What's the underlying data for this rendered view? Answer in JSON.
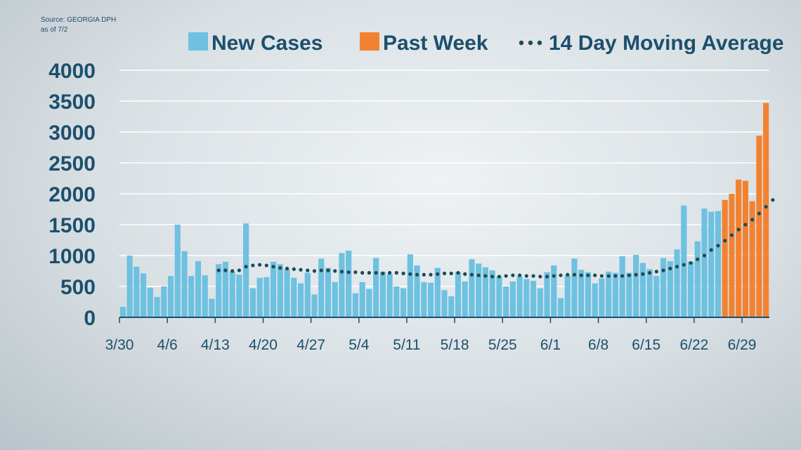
{
  "source": {
    "line1": "Source: GEORGIA DPH",
    "line2": "as of 7/2"
  },
  "colors": {
    "new_cases": "#6ec1e0",
    "past_week": "#f28232",
    "moving_average": "#1d4a55",
    "text": "#1c4f6d",
    "grid": "#ffffff"
  },
  "chart_data": {
    "type": "bar",
    "title": "",
    "xlabel": "",
    "ylabel": "",
    "ylim": [
      0,
      4000
    ],
    "yticks": [
      0,
      500,
      1000,
      1500,
      2000,
      2500,
      3000,
      3500,
      4000
    ],
    "grid": true,
    "legend_position": "top",
    "x_tick_labels": [
      "3/30",
      "4/6",
      "4/13",
      "4/20",
      "4/27",
      "5/4",
      "5/11",
      "5/18",
      "5/25",
      "6/1",
      "6/8",
      "6/15",
      "6/22",
      "6/29"
    ],
    "x_tick_start_indices": [
      0,
      7,
      14,
      21,
      28,
      35,
      42,
      49,
      56,
      63,
      70,
      77,
      84,
      91
    ],
    "start_date": "3/30",
    "series": [
      {
        "name": "New Cases",
        "type": "bar",
        "color": "#6ec1e0",
        "values": [
          170,
          1000,
          820,
          710,
          480,
          330,
          500,
          670,
          1500,
          1070,
          670,
          910,
          680,
          300,
          860,
          900,
          740,
          690,
          1520,
          470,
          640,
          650,
          900,
          860,
          780,
          640,
          550,
          720,
          370,
          950,
          800,
          570,
          1040,
          1080,
          390,
          570,
          460,
          960,
          740,
          700,
          500,
          470,
          1020,
          840,
          570,
          560,
          800,
          440,
          340,
          730,
          580,
          940,
          870,
          810,
          760,
          660,
          500,
          580,
          660,
          620,
          590,
          470,
          730,
          840,
          310,
          680,
          950,
          770,
          730,
          550,
          630,
          740,
          720,
          990,
          720,
          1010,
          880,
          780,
          670,
          960,
          910,
          1100,
          1810,
          900,
          1230,
          1760,
          1710,
          1720
        ]
      },
      {
        "name": "Past Week",
        "type": "bar",
        "color": "#f28232",
        "values": [
          1900,
          2000,
          2230,
          2210,
          1880,
          2940,
          3470
        ]
      },
      {
        "name": "14 Day Moving Average",
        "type": "line",
        "style": "dotted",
        "color": "#1d4a55",
        "x_start_index": 14,
        "values": [
          760,
          760,
          750,
          760,
          820,
          840,
          850,
          840,
          820,
          800,
          790,
          780,
          770,
          760,
          750,
          760,
          760,
          750,
          740,
          730,
          730,
          720,
          720,
          720,
          710,
          720,
          720,
          710,
          700,
          690,
          690,
          690,
          700,
          710,
          710,
          720,
          700,
          690,
          680,
          670,
          660,
          660,
          670,
          680,
          680,
          670,
          670,
          660,
          660,
          670,
          680,
          690,
          690,
          680,
          680,
          680,
          670,
          670,
          670,
          670,
          680,
          690,
          700,
          720,
          740,
          760,
          790,
          820,
          850,
          880,
          940,
          1000,
          1090,
          1160,
          1240,
          1330,
          1420,
          1500,
          1580,
          1680,
          1790,
          1900
        ]
      }
    ]
  }
}
